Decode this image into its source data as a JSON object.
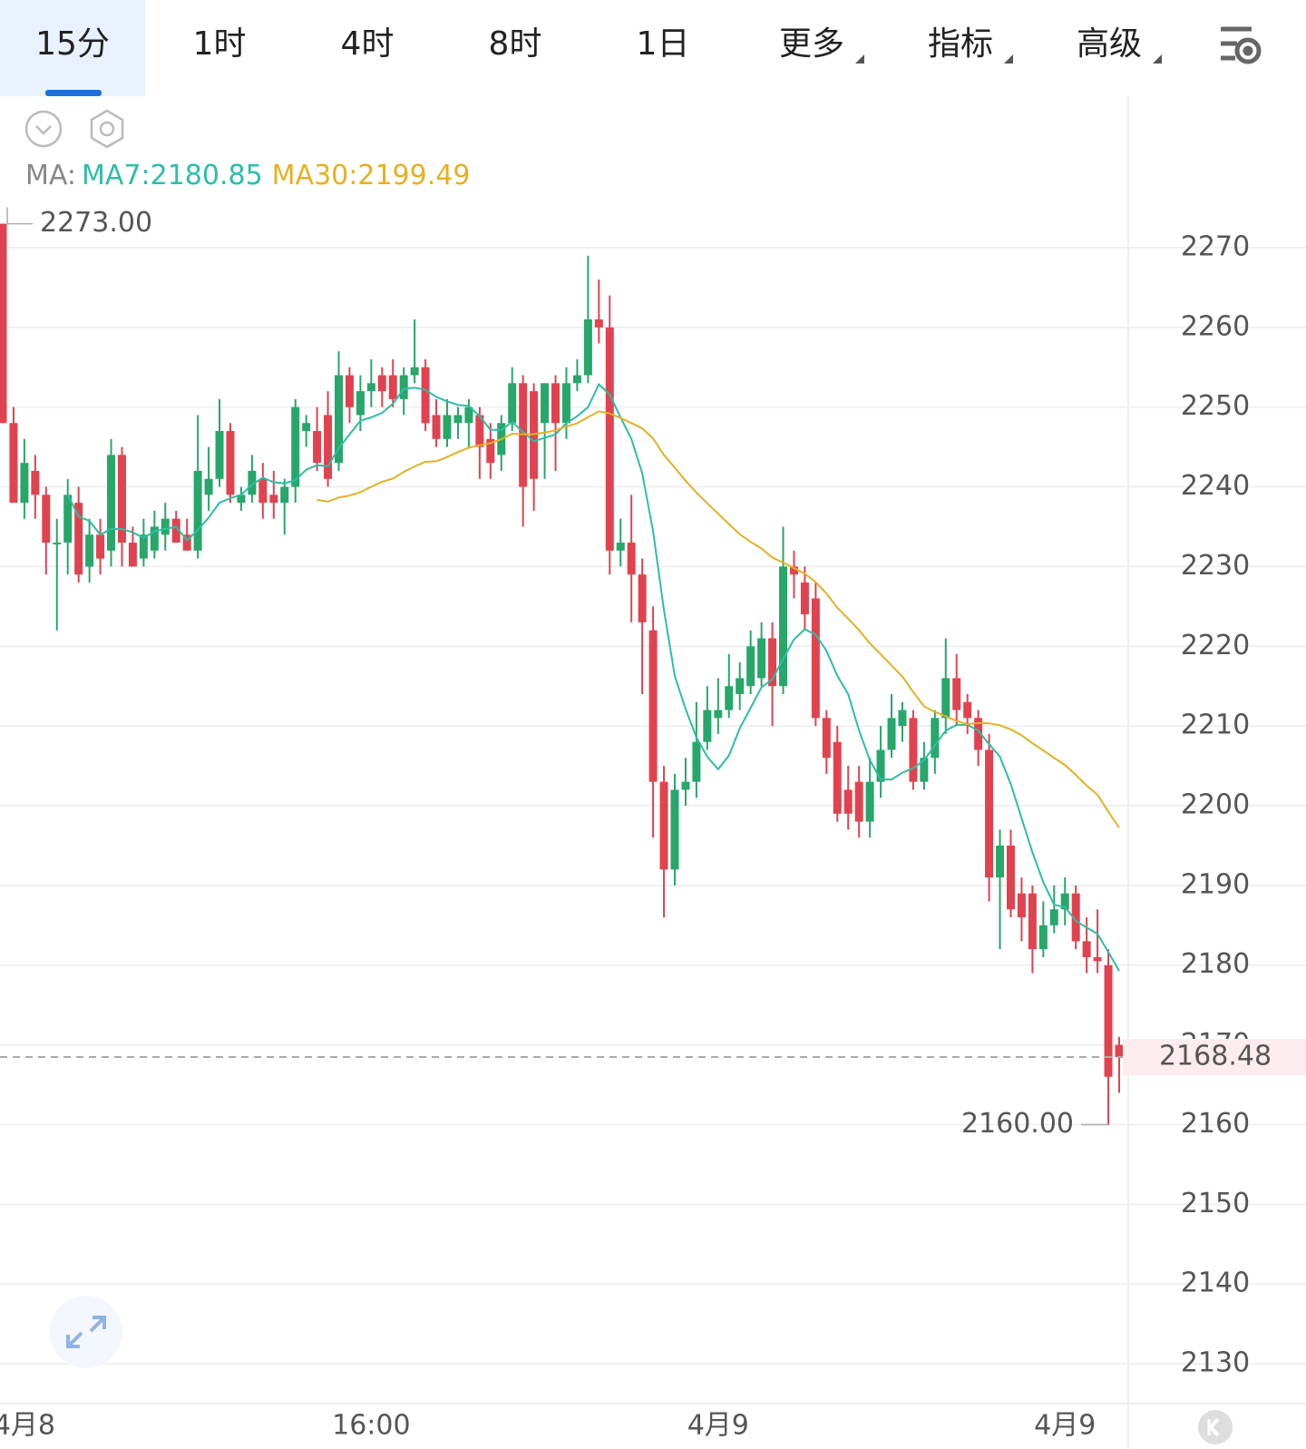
{
  "tabs": [
    "15分",
    "1时",
    "4时",
    "8时",
    "1日",
    "更多",
    "指标",
    "高级"
  ],
  "chart_data": {
    "type": "candlestick",
    "ma_legend": {
      "prefix": "MA:",
      "items": [
        {
          "label": "MA7:2180.85",
          "color": "#2bbfa5"
        },
        {
          "label": "MA30:2199.49",
          "color": "#e8b020"
        }
      ]
    },
    "up_color": "#27a76a",
    "down_color": "#e0434f",
    "ylim": [
      2125,
      2289
    ],
    "yticks": [
      2130,
      2140,
      2150,
      2160,
      2170,
      2180,
      2190,
      2200,
      2210,
      2220,
      2230,
      2240,
      2250,
      2260,
      2270
    ],
    "grid": true,
    "high_label": {
      "value": 2273,
      "label": "2273.00"
    },
    "low_label": {
      "value": 2160,
      "label": "2160.00"
    },
    "last_price": {
      "value": 2168.48,
      "label": "2168.48"
    },
    "categories": [
      null,
      null,
      "4月8",
      null,
      null,
      null,
      null,
      null,
      null,
      null,
      null,
      null,
      null,
      null,
      null,
      null,
      null,
      null,
      null,
      null,
      null,
      null,
      null,
      null,
      null,
      null,
      null,
      null,
      null,
      null,
      null,
      null,
      null,
      null,
      "16:00",
      null,
      null,
      null,
      null,
      null,
      null,
      null,
      null,
      null,
      null,
      null,
      null,
      null,
      null,
      null,
      null,
      null,
      null,
      null,
      null,
      null,
      null,
      null,
      null,
      null,
      null,
      null,
      null,
      null,
      null,
      null,
      "4月9",
      null,
      null,
      null,
      null,
      null,
      null,
      null,
      null,
      null,
      null,
      null,
      null,
      null,
      null,
      null,
      null,
      null,
      null,
      null,
      null,
      null,
      null,
      null,
      null,
      null,
      null,
      null,
      null,
      null,
      null,
      null,
      "4月9",
      null,
      null,
      null,
      null,
      null
    ],
    "ohlc": [
      [
        2273,
        2273,
        2248,
        2248
      ],
      [
        2248,
        2250,
        2238,
        2238
      ],
      [
        2238,
        2246,
        2236,
        2243
      ],
      [
        2242,
        2244,
        2236,
        2239
      ],
      [
        2239,
        2240,
        2229,
        2233
      ],
      [
        2233,
        2236,
        2222,
        2233
      ],
      [
        2233,
        2241,
        2229,
        2239
      ],
      [
        2238,
        2240,
        2228,
        2229
      ],
      [
        2230,
        2236,
        2228,
        2234
      ],
      [
        2234,
        2236,
        2229,
        2231
      ],
      [
        2232,
        2246,
        2230,
        2244
      ],
      [
        2244,
        2245,
        2230,
        2233
      ],
      [
        2233,
        2235,
        2230,
        2230
      ],
      [
        2231,
        2236,
        2230,
        2234
      ],
      [
        2232,
        2237,
        2231,
        2235
      ],
      [
        2234,
        2238,
        2232,
        2236
      ],
      [
        2236,
        2237,
        2233,
        2233
      ],
      [
        2234,
        2236,
        2232,
        2232
      ],
      [
        2232,
        2249,
        2231,
        2242
      ],
      [
        2239,
        2245,
        2237,
        2241
      ],
      [
        2241,
        2251,
        2240,
        2247
      ],
      [
        2247,
        2248,
        2238,
        2239
      ],
      [
        2238,
        2240,
        2237,
        2239
      ],
      [
        2239,
        2244,
        2238,
        2242
      ],
      [
        2241,
        2243,
        2236,
        2238
      ],
      [
        2239,
        2242,
        2236,
        2238
      ],
      [
        2238,
        2241,
        2234,
        2240
      ],
      [
        2240,
        2251,
        2238,
        2250
      ],
      [
        2247,
        2249,
        2245,
        2248
      ],
      [
        2247,
        2250,
        2242,
        2243
      ],
      [
        2249,
        2252,
        2240,
        2241
      ],
      [
        2243,
        2257,
        2242,
        2254
      ],
      [
        2254,
        2255,
        2248,
        2250
      ],
      [
        2249,
        2254,
        2247,
        2252
      ],
      [
        2252,
        2256,
        2250,
        2253
      ],
      [
        2254,
        2255,
        2250,
        2252
      ],
      [
        2254,
        2256,
        2250,
        2251
      ],
      [
        2251,
        2255,
        2249,
        2254
      ],
      [
        2254,
        2261,
        2253,
        2255
      ],
      [
        2255,
        2256,
        2247,
        2248
      ],
      [
        2249,
        2251,
        2245,
        2246
      ],
      [
        2246,
        2251,
        2245,
        2249
      ],
      [
        2248,
        2250,
        2246,
        2249
      ],
      [
        2248,
        2251,
        2245,
        2250
      ],
      [
        2249,
        2250,
        2241,
        2245
      ],
      [
        2246,
        2248,
        2241,
        2243
      ],
      [
        2244,
        2249,
        2242,
        2248
      ],
      [
        2248,
        2255,
        2247,
        2253
      ],
      [
        2253,
        2254,
        2235,
        2240
      ],
      [
        2252,
        2253,
        2237,
        2241
      ],
      [
        2248,
        2253,
        2241,
        2253
      ],
      [
        2253,
        2254,
        2242,
        2248
      ],
      [
        2248,
        2255,
        2246,
        2253
      ],
      [
        2253,
        2256,
        2252,
        2254
      ],
      [
        2254,
        2269,
        2253,
        2261
      ],
      [
        2261,
        2266,
        2258,
        2260
      ],
      [
        2260,
        2264,
        2229,
        2232
      ],
      [
        2232,
        2236,
        2230,
        2233
      ],
      [
        2233,
        2239,
        2223,
        2229
      ],
      [
        2229,
        2231,
        2214,
        2223
      ],
      [
        2222,
        2225,
        2196,
        2203
      ],
      [
        2203,
        2205,
        2186,
        2192
      ],
      [
        2192,
        2204,
        2190,
        2202
      ],
      [
        2202,
        2206,
        2200,
        2203
      ],
      [
        2203,
        2213,
        2201,
        2208
      ],
      [
        2208,
        2215,
        2207,
        2212
      ],
      [
        2211,
        2216,
        2209,
        2212
      ],
      [
        2212,
        2219,
        2211,
        2215
      ],
      [
        2214,
        2218,
        2212,
        2216
      ],
      [
        2215,
        2222,
        2214,
        2220
      ],
      [
        2216,
        2223,
        2215,
        2221
      ],
      [
        2221,
        2223,
        2210,
        2215
      ],
      [
        2215,
        2235,
        2214,
        2230
      ],
      [
        2230,
        2232,
        2226,
        2229
      ],
      [
        2228,
        2230,
        2222,
        2224
      ],
      [
        2226,
        2228,
        2210,
        2211
      ],
      [
        2211,
        2212,
        2204,
        2206
      ],
      [
        2208,
        2210,
        2198,
        2199
      ],
      [
        2202,
        2205,
        2197,
        2199
      ],
      [
        2203,
        2205,
        2196,
        2198
      ],
      [
        2198,
        2206,
        2196,
        2203
      ],
      [
        2203,
        2210,
        2201,
        2207
      ],
      [
        2207,
        2214,
        2206,
        2211
      ],
      [
        2210,
        2213,
        2208,
        2212
      ],
      [
        2211,
        2212,
        2202,
        2203
      ],
      [
        2203,
        2208,
        2202,
        2206
      ],
      [
        2206,
        2212,
        2204,
        2211
      ],
      [
        2211,
        2221,
        2209,
        2216
      ],
      [
        2216,
        2219,
        2210,
        2212
      ],
      [
        2213,
        2214,
        2209,
        2211
      ],
      [
        2211,
        2212,
        2205,
        2207
      ],
      [
        2207,
        2209,
        2188,
        2191
      ],
      [
        2191,
        2197,
        2182,
        2195
      ],
      [
        2195,
        2197,
        2186,
        2187
      ],
      [
        2189,
        2191,
        2183,
        2186
      ],
      [
        2189,
        2190,
        2179,
        2182
      ],
      [
        2182,
        2188,
        2181,
        2185
      ],
      [
        2185,
        2190,
        2184,
        2187
      ],
      [
        2187,
        2191,
        2185,
        2189
      ],
      [
        2189,
        2190,
        2182,
        2183
      ],
      [
        2183,
        2186,
        2179,
        2181
      ],
      [
        2181,
        2187,
        2179,
        2180.5
      ],
      [
        2180,
        2182,
        2160,
        2166
      ],
      [
        2170,
        2171,
        2164,
        2168.48
      ]
    ]
  }
}
